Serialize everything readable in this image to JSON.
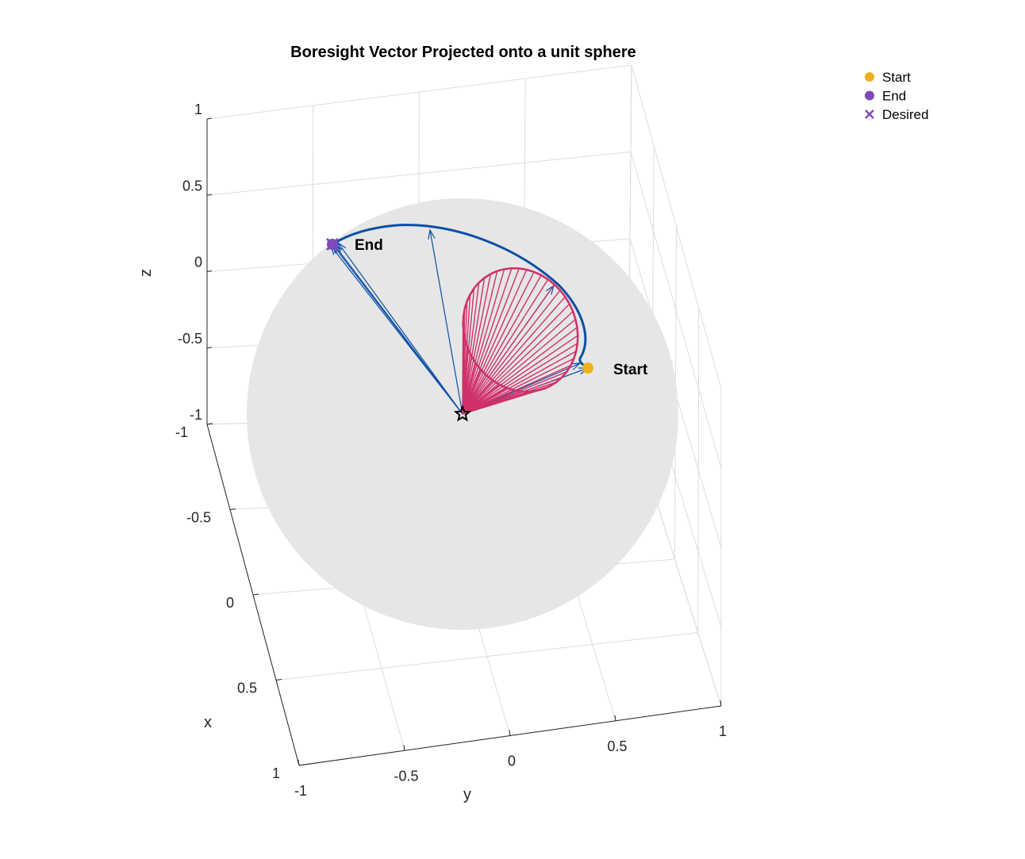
{
  "chart_data": {
    "type": "scatter",
    "title": "Boresight Vector Projected onto a unit sphere",
    "xlabel": "x",
    "ylabel": "y",
    "zlabel": "z",
    "xlim": [
      -1,
      1
    ],
    "ylim": [
      -1,
      1
    ],
    "zlim": [
      -1,
      1
    ],
    "x_ticks": [
      "-1",
      "-0.5",
      "0",
      "0.5",
      "1"
    ],
    "y_ticks": [
      "-1",
      "-0.5",
      "0",
      "0.5",
      "1"
    ],
    "z_ticks": [
      "1",
      "0.5",
      "0",
      "-0.5",
      "-1"
    ],
    "grid": true,
    "sphere_color": "#e6e6e6",
    "legend_position": "top-right",
    "legend": [
      {
        "label": "Start",
        "marker": "circle",
        "color": "#EDB120"
      },
      {
        "label": "End",
        "marker": "circle",
        "color": "#7E4BBA"
      },
      {
        "label": "Desired",
        "marker": "x",
        "color": "#7E4BBA"
      }
    ],
    "annotations": [
      {
        "text": "Start",
        "anchor": "start"
      },
      {
        "text": "End",
        "anchor": "end"
      }
    ],
    "series": [
      {
        "name": "Start",
        "color": "#EDB120",
        "points": [
          {
            "x": 0.38,
            "y": 0.55,
            "z": 0.75
          }
        ]
      },
      {
        "name": "End",
        "color": "#7E4BBA",
        "points": [
          {
            "x": -0.45,
            "y": -0.45,
            "z": 0.77
          }
        ]
      },
      {
        "name": "Desired",
        "color": "#7E4BBA",
        "points": [
          {
            "x": -0.45,
            "y": -0.46,
            "z": 0.77
          }
        ]
      }
    ],
    "trajectory_color": "#0A4FA6",
    "cone_color": "#D0306A",
    "origin_marker": "star"
  }
}
